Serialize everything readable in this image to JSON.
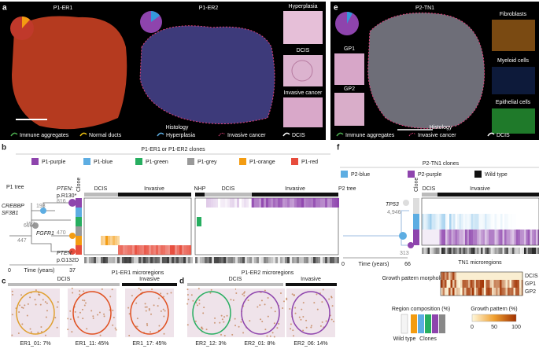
{
  "panel_a": {
    "letter": "a",
    "titles": [
      "P1-ER1",
      "P1-ER2"
    ],
    "insets": [
      "Hyperplasia",
      "DCIS",
      "Invasive cancer"
    ],
    "legend": [
      "Immune aggregates",
      "Normal ducts",
      "Hyperplasia",
      "Invasive cancer",
      "DCIS"
    ],
    "legend_title": "Histology"
  },
  "panel_e": {
    "letter": "e",
    "title": "P2-TN1",
    "insets": [
      "GP1",
      "GP2"
    ],
    "channels": [
      "Fibroblasts",
      "Myeloid cells",
      "Epithelial cells"
    ],
    "legend": [
      "Immune aggregates",
      "Invasive cancer",
      "DCIS"
    ],
    "legend_title": "Histology"
  },
  "panel_b": {
    "letter": "b",
    "clones_title": "P1-ER1 or P1-ER2 clones",
    "clones": [
      "P1-purple",
      "P1-blue",
      "P1-green",
      "P1-grey",
      "P1-orange",
      "P1-red"
    ],
    "tree_title": "P1 tree",
    "mutations": [
      "PTEN:",
      "p.R130*",
      "CREBBP",
      "SF3B1",
      "FGFR1",
      "PTEN:",
      "p.G132D"
    ],
    "branch_labels": [
      "193",
      "816",
      "152",
      "447",
      "616",
      "470"
    ],
    "clone_label": "Clone",
    "er1_headers": [
      "DCIS",
      "Invasive"
    ],
    "er2_headers": [
      "NHP",
      "DCIS",
      "Invasive"
    ],
    "time_axis": [
      "0",
      "Time (years)",
      "37"
    ],
    "microregions": [
      "P1-ER1 microregions",
      "P1-ER2 microregions"
    ]
  },
  "panel_c": {
    "letter": "c",
    "headers": [
      "DCIS",
      "Invasive"
    ],
    "captions": [
      "ER1_01: 7%",
      "ER1_11: 45%",
      "ER1_17: 45%"
    ]
  },
  "panel_d": {
    "letter": "d",
    "headers": [
      "DCIS",
      "Invasive"
    ],
    "captions": [
      "ER2_12: 3%",
      "ER2_01: 8%",
      "ER2_06: 14%"
    ]
  },
  "panel_f": {
    "letter": "f",
    "clones_title": "P2-TN1 clones",
    "clones": [
      "P2-blue",
      "P2-purple",
      "Wild type"
    ],
    "tree_title": "P2 tree",
    "mutation": "TP53",
    "branch_labels": [
      "4,946",
      "313"
    ],
    "clone_label": "Clone",
    "headers": [
      "DCIS",
      "Invasive"
    ],
    "time_axis": [
      "0",
      "Time (years)",
      "66"
    ],
    "microregions": "TN1 microregions",
    "growth_title": "Growth pattern morphology",
    "growth_rows": [
      "DCIS",
      "GP1",
      "GP2"
    ],
    "composition_title": "Region composition (%)",
    "composition_labels": [
      "Wild type",
      "Clones"
    ],
    "growth_scale_title": "Growth pattern (%)",
    "growth_ticks": [
      "0",
      "50",
      "100"
    ]
  }
}
